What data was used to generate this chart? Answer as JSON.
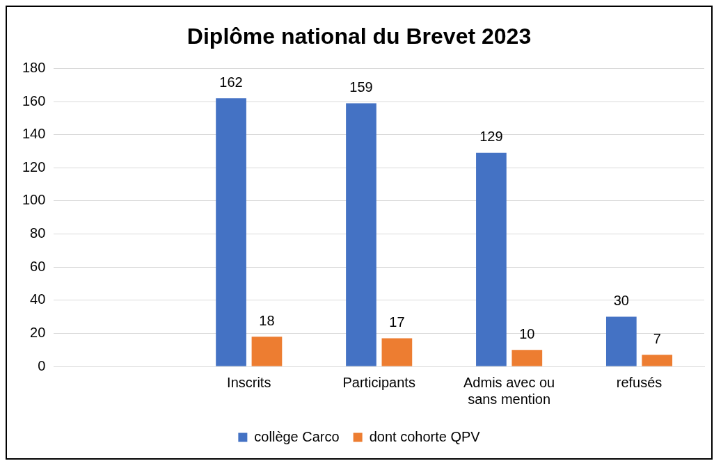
{
  "chart_data": {
    "type": "bar",
    "title": "Diplôme national du Brevet 2023",
    "categories": [
      null,
      "Inscrits",
      "Participants",
      "Admis avec ou sans mention",
      "refusés"
    ],
    "series": [
      {
        "name": "collège Carco",
        "color": "#4472c4",
        "values": [
          null,
          162,
          159,
          129,
          30
        ]
      },
      {
        "name": "dont cohorte QPV",
        "color": "#ed7d31",
        "values": [
          null,
          18,
          17,
          10,
          7
        ]
      }
    ],
    "ylim": [
      0,
      180
    ],
    "yticks": [
      0,
      20,
      40,
      60,
      80,
      100,
      120,
      140,
      160,
      180
    ],
    "grid": "y",
    "legend": "bottom",
    "data_labels": true
  }
}
